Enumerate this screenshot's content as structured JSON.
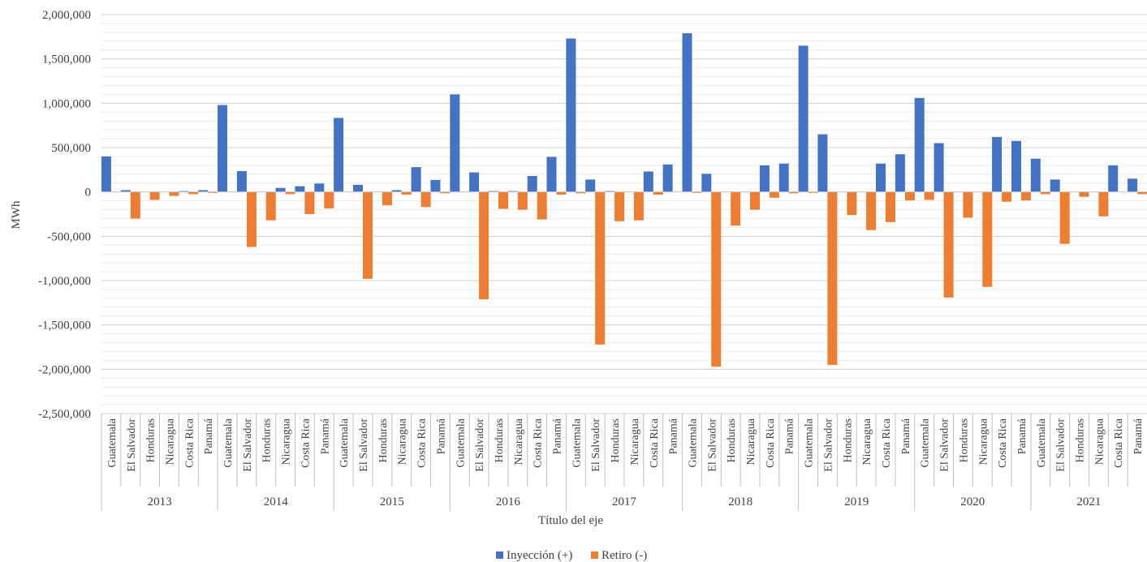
{
  "chart_data": {
    "type": "bar",
    "xlabel": "Título del eje",
    "ylabel": "MWh",
    "ylim": [
      -2500000,
      2000000
    ],
    "ytick_step": 500000,
    "ytick_labels": [
      "-2,500,000",
      "-2,000,000",
      "-1,500,000",
      "-1,000,000",
      "-500,000",
      "0",
      "500,000",
      "1,000,000",
      "1,500,000",
      "2,000,000"
    ],
    "grid": true,
    "legend_position": "bottom",
    "groups": [
      "2013",
      "2014",
      "2015",
      "2016",
      "2017",
      "2018",
      "2019",
      "2020",
      "2021"
    ],
    "countries": [
      "Guatemala",
      "El Salvador",
      "Honduras",
      "Nicaragua",
      "Costa Rica",
      "Panamá"
    ],
    "series": [
      {
        "name": "Inyección (+)",
        "color": "#4472C4",
        "values": [
          [
            400000,
            20000,
            0,
            0,
            10000,
            20000
          ],
          [
            980000,
            235000,
            0,
            45000,
            65000,
            95000
          ],
          [
            835000,
            80000,
            0,
            20000,
            280000,
            135000
          ],
          [
            1100000,
            220000,
            10000,
            10000,
            180000,
            395000
          ],
          [
            1730000,
            140000,
            10000,
            0,
            230000,
            310000
          ],
          [
            1790000,
            205000,
            0,
            0,
            300000,
            320000
          ],
          [
            1650000,
            650000,
            0,
            0,
            320000,
            425000
          ],
          [
            1060000,
            550000,
            0,
            0,
            620000,
            575000
          ],
          [
            375000,
            140000,
            0,
            0,
            300000,
            150000
          ]
        ]
      },
      {
        "name": "Retiro (-)",
        "color": "#ED7D31",
        "values": [
          [
            0,
            -300000,
            -90000,
            -45000,
            -25000,
            -10000
          ],
          [
            0,
            -620000,
            -320000,
            -25000,
            -250000,
            -185000
          ],
          [
            0,
            -980000,
            -150000,
            -30000,
            -170000,
            -15000
          ],
          [
            0,
            -1210000,
            -190000,
            -200000,
            -310000,
            -30000
          ],
          [
            -15000,
            -1720000,
            -330000,
            -320000,
            -30000,
            0
          ],
          [
            -10000,
            -1970000,
            -380000,
            -200000,
            -65000,
            -15000
          ],
          [
            -10000,
            -1950000,
            -260000,
            -430000,
            -340000,
            -95000
          ],
          [
            -90000,
            -1190000,
            -290000,
            -1070000,
            -110000,
            -95000
          ],
          [
            -25000,
            -585000,
            -55000,
            -275000,
            0,
            -25000
          ]
        ]
      }
    ]
  }
}
